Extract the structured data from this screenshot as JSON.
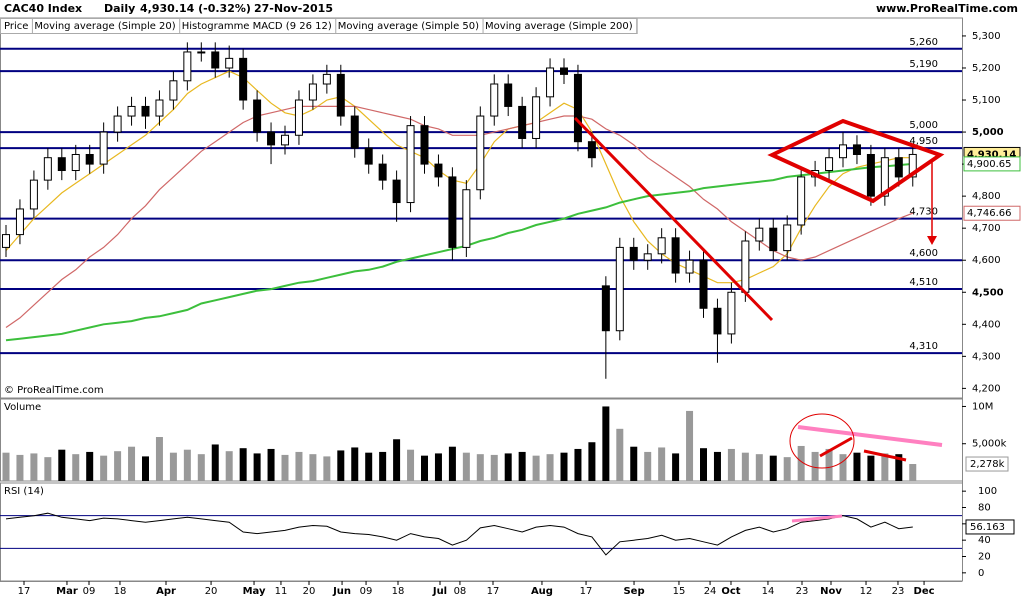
{
  "header": {
    "title": "CAC40 Index",
    "period": "Daily",
    "price": "4,930.14 (-0.32%)",
    "date": "27-Nov-2015",
    "site": "www.ProRealTime.com"
  },
  "chart_data": [
    {
      "type": "candlestick",
      "legend_labels": [
        "Price",
        "Histogramme MACD (9 26 12)"
      ],
      "watermark": "© ProRealTime.com",
      "open": [
        4640,
        4680,
        4760,
        4850,
        4920,
        4880,
        4930,
        4900,
        5000,
        5050,
        5080,
        5050,
        5100,
        5160,
        5250,
        5250,
        5200,
        5230,
        5100,
        5000,
        4960,
        4990,
        5100,
        5150,
        5180,
        5050,
        4950,
        4900,
        4850,
        4780,
        5020,
        4900,
        4860,
        4640,
        4820,
        5050,
        5150,
        5080,
        4980,
        5110,
        5200,
        5180,
        4970,
        4520,
        4380,
        4640,
        4600,
        4620,
        4670,
        4560,
        4600,
        4450,
        4370,
        4500,
        4660,
        4700,
        4630,
        4710,
        4860,
        4880,
        4920,
        4960,
        4930,
        4800,
        4920,
        4860
      ],
      "high": [
        4710,
        4790,
        4880,
        4950,
        4950,
        4960,
        4960,
        5030,
        5080,
        5110,
        5110,
        5130,
        5190,
        5280,
        5280,
        5280,
        5270,
        5260,
        5130,
        5030,
        5020,
        5130,
        5180,
        5210,
        5210,
        5080,
        4980,
        4930,
        4880,
        5050,
        5050,
        4930,
        4890,
        4850,
        5080,
        5180,
        5180,
        5110,
        5140,
        5230,
        5230,
        5210,
        5000,
        4550,
        4670,
        4670,
        4650,
        4700,
        4700,
        4630,
        4630,
        4480,
        4530,
        4690,
        4730,
        4730,
        4740,
        4890,
        4910,
        4950,
        5000,
        4990,
        4960,
        4950,
        4950,
        4960
      ],
      "low": [
        4610,
        4650,
        4730,
        4820,
        4850,
        4850,
        4870,
        4870,
        4970,
        5020,
        5010,
        5020,
        5070,
        5130,
        5220,
        5170,
        5170,
        5070,
        4970,
        4900,
        4930,
        4960,
        5070,
        5120,
        5020,
        4920,
        4870,
        4820,
        4720,
        4750,
        4870,
        4830,
        4600,
        4610,
        4790,
        5020,
        5050,
        4950,
        4950,
        5080,
        5150,
        4940,
        4890,
        4230,
        4350,
        4570,
        4570,
        4590,
        4530,
        4530,
        4420,
        4280,
        4340,
        4470,
        4630,
        4600,
        4600,
        4680,
        4830,
        4850,
        4890,
        4900,
        4770,
        4770,
        4830,
        4830
      ],
      "close": [
        4680,
        4760,
        4850,
        4920,
        4880,
        4930,
        4900,
        5000,
        5050,
        5080,
        5050,
        5100,
        5160,
        5250,
        5250,
        5200,
        5230,
        5100,
        5000,
        4960,
        4990,
        5100,
        5150,
        5180,
        5050,
        4950,
        4900,
        4850,
        4780,
        5020,
        4900,
        4860,
        4640,
        4820,
        5050,
        5150,
        5080,
        4980,
        5110,
        5200,
        5180,
        4970,
        4920,
        4380,
        4640,
        4600,
        4620,
        4670,
        4560,
        4600,
        4450,
        4370,
        4500,
        4660,
        4700,
        4630,
        4710,
        4860,
        4880,
        4920,
        4960,
        4930,
        4800,
        4920,
        4860,
        4930.14
      ],
      "last_close_label": "4,930.14",
      "series": [
        {
          "name": "Moving average (Simple 20)",
          "color": "#e8b820",
          "values": [
            4630,
            4680,
            4730,
            4770,
            4810,
            4840,
            4870,
            4900,
            4930,
            4960,
            4990,
            5030,
            5070,
            5120,
            5150,
            5170,
            5190,
            5170,
            5130,
            5090,
            5060,
            5050,
            5070,
            5100,
            5110,
            5080,
            5040,
            5000,
            4960,
            4940,
            4920,
            4880,
            4850,
            4840,
            4900,
            4970,
            5010,
            5020,
            5030,
            5060,
            5090,
            5070,
            5000,
            4900,
            4800,
            4720,
            4660,
            4620,
            4590,
            4570,
            4550,
            4530,
            4530,
            4540,
            4560,
            4580,
            4620,
            4700,
            4770,
            4830,
            4870,
            4890,
            4900,
            4910,
            4920,
            4920
          ]
        },
        {
          "name": "Moving average (Simple 50)",
          "color": "#d06868",
          "last_label": "4,746.66",
          "values": [
            4390,
            4420,
            4460,
            4500,
            4540,
            4570,
            4610,
            4640,
            4680,
            4730,
            4770,
            4820,
            4860,
            4900,
            4940,
            4970,
            5000,
            5030,
            5050,
            5060,
            5070,
            5080,
            5080,
            5080,
            5080,
            5080,
            5070,
            5060,
            5050,
            5040,
            5020,
            5010,
            4990,
            4990,
            4990,
            5000,
            5010,
            5020,
            5030,
            5040,
            5050,
            5050,
            5040,
            5010,
            4990,
            4960,
            4920,
            4890,
            4860,
            4830,
            4790,
            4760,
            4720,
            4690,
            4660,
            4630,
            4610,
            4600,
            4610,
            4630,
            4650,
            4670,
            4690,
            4710,
            4730,
            4746.66
          ]
        },
        {
          "name": "Moving average (Simple 200)",
          "color": "#3cbf3c",
          "last_label": "4,900.65",
          "values": [
            4350,
            4355,
            4360,
            4365,
            4370,
            4380,
            4390,
            4400,
            4405,
            4410,
            4420,
            4425,
            4435,
            4445,
            4465,
            4475,
            4485,
            4495,
            4505,
            4510,
            4520,
            4530,
            4535,
            4545,
            4555,
            4565,
            4570,
            4580,
            4595,
            4605,
            4615,
            4625,
            4635,
            4645,
            4660,
            4670,
            4685,
            4695,
            4710,
            4720,
            4730,
            4745,
            4755,
            4765,
            4780,
            4790,
            4800,
            4805,
            4810,
            4815,
            4825,
            4830,
            4835,
            4840,
            4845,
            4850,
            4860,
            4865,
            4870,
            4875,
            4880,
            4885,
            4890,
            4893,
            4897,
            4900.65
          ]
        }
      ],
      "levels": [
        {
          "value": 5260,
          "label": "5,260"
        },
        {
          "value": 5190,
          "label": "5,190"
        },
        {
          "value": 5000,
          "label": "5,000"
        },
        {
          "value": 4950,
          "label": "4,950"
        },
        {
          "value": 4730,
          "label": "4,730"
        },
        {
          "value": 4600,
          "label": "4,600"
        },
        {
          "value": 4510,
          "label": "4,510"
        },
        {
          "value": 4310,
          "label": "4,310"
        }
      ],
      "ylim": [
        4170,
        5356
      ],
      "yticks": [
        {
          "value": 4200,
          "label": "4,200"
        },
        {
          "value": 4300,
          "label": "4,300"
        },
        {
          "value": 4400,
          "label": "4,400"
        },
        {
          "value": 4500,
          "label": "4,500"
        },
        {
          "value": 4600,
          "label": "4,600"
        },
        {
          "value": 4700,
          "label": "4,700"
        },
        {
          "value": 4800,
          "label": "4,800"
        },
        {
          "value": 4900,
          "label": "4,900"
        },
        {
          "value": 5000,
          "label": "5,000"
        },
        {
          "value": 5100,
          "label": "5,100"
        },
        {
          "value": 5200,
          "label": "5,200"
        },
        {
          "value": 5300,
          "label": "5,300"
        }
      ]
    },
    {
      "type": "bar",
      "title": "Volume",
      "values": [
        3800000,
        3500000,
        3700000,
        3200000,
        4200000,
        3600000,
        3900000,
        3400000,
        4000000,
        4600000,
        3300000,
        5900000,
        3800000,
        4200000,
        3600000,
        4900000,
        4000000,
        4400000,
        3700000,
        4300000,
        3500000,
        3900000,
        3600000,
        3300000,
        4100000,
        4500000,
        3800000,
        3900000,
        5600000,
        4200000,
        3400000,
        3700000,
        4600000,
        3800000,
        3600000,
        3500000,
        3700000,
        3900000,
        3400000,
        3600000,
        3800000,
        4300000,
        5200000,
        10000000,
        7000000,
        4600000,
        3900000,
        4500000,
        3700000,
        9400000,
        4400000,
        3900000,
        4300000,
        3800000,
        3600000,
        3400000,
        3200000,
        4700000,
        3900000,
        4300000,
        3600000,
        3800000,
        3400000,
        3700000,
        3600000,
        2278000
      ],
      "last_label": "2,278k",
      "ylim": [
        0,
        11000000
      ],
      "yticks": [
        {
          "value": 10000000,
          "label": "10M"
        },
        {
          "value": 5000000,
          "label": "5,000k"
        }
      ]
    },
    {
      "type": "line",
      "title": "RSI (14)",
      "color": "#000000",
      "values": [
        66,
        68,
        70,
        73,
        68,
        66,
        64,
        67,
        66,
        64,
        62,
        64,
        66,
        68,
        66,
        64,
        62,
        50,
        48,
        50,
        52,
        56,
        58,
        57,
        50,
        48,
        47,
        44,
        40,
        48,
        44,
        42,
        34,
        40,
        55,
        58,
        54,
        50,
        56,
        58,
        56,
        48,
        44,
        22,
        38,
        40,
        42,
        46,
        40,
        42,
        38,
        34,
        44,
        52,
        56,
        50,
        54,
        62,
        64,
        66,
        70,
        66,
        56,
        62,
        54,
        56.163
      ],
      "levels": [
        70,
        30
      ],
      "ylim": [
        -10,
        110
      ],
      "yticks": [
        100,
        80,
        60,
        40,
        20,
        0
      ],
      "xlim": [
        -0.43,
        68.53
      ],
      "xticks": [
        {
          "value": 1.29,
          "label": "17"
        },
        {
          "value": 4.37,
          "label": "Mar"
        },
        {
          "value": 5.95,
          "label": "09"
        },
        {
          "value": 8.17,
          "label": "18"
        },
        {
          "value": 11.47,
          "label": "Apr"
        },
        {
          "value": 14.7,
          "label": "20"
        },
        {
          "value": 17.78,
          "label": "May"
        },
        {
          "value": 19.71,
          "label": "11"
        },
        {
          "value": 21.72,
          "label": "20"
        },
        {
          "value": 24.09,
          "label": "Jun"
        },
        {
          "value": 25.81,
          "label": "09"
        },
        {
          "value": 28.1,
          "label": "18"
        },
        {
          "value": 31.11,
          "label": "Jul"
        },
        {
          "value": 32.54,
          "label": "08"
        },
        {
          "value": 34.91,
          "label": "17"
        },
        {
          "value": 38.42,
          "label": "Aug"
        },
        {
          "value": 41.58,
          "label": "17"
        },
        {
          "value": 45.02,
          "label": "Sep"
        },
        {
          "value": 48.24,
          "label": "15"
        },
        {
          "value": 50.47,
          "label": "24"
        },
        {
          "value": 51.97,
          "label": "Oct"
        },
        {
          "value": 54.62,
          "label": "14"
        },
        {
          "value": 57.06,
          "label": "23"
        },
        {
          "value": 59.14,
          "label": "Nov"
        },
        {
          "value": 61.65,
          "label": "12"
        },
        {
          "value": 63.94,
          "label": "23"
        },
        {
          "value": 65.81,
          "label": "Dec"
        }
      ]
    }
  ]
}
